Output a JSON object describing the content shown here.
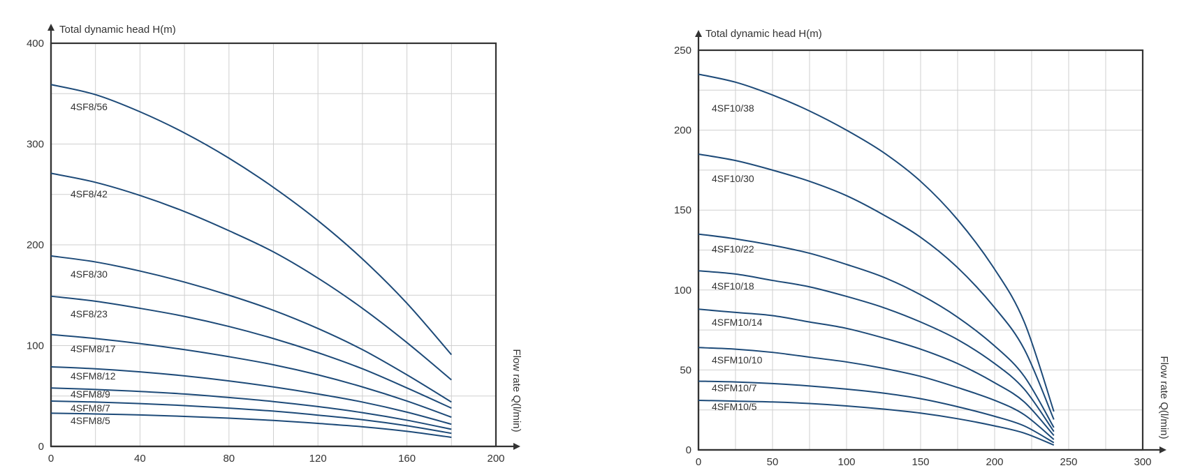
{
  "chart_data": [
    {
      "type": "line",
      "ylabel": "Total dynamic head H(m)",
      "xlabel": "Flow rate Q(l/min)",
      "xlim": [
        0,
        200
      ],
      "ylim": [
        0,
        400
      ],
      "xticks": [
        "0",
        "40",
        "80",
        "120",
        "160",
        "200"
      ],
      "yticks": [
        "0",
        "100",
        "200",
        "300",
        "400"
      ],
      "xtick_values": [
        0,
        40,
        80,
        120,
        160,
        200
      ],
      "ytick_values": [
        0,
        100,
        200,
        300,
        400
      ],
      "grid": true,
      "x": [
        0,
        20,
        40,
        60,
        80,
        100,
        120,
        140,
        160,
        180
      ],
      "series": [
        {
          "name": "4SF8/56",
          "values": [
            359,
            349,
            332,
            311,
            286,
            257,
            224,
            186,
            142,
            91
          ]
        },
        {
          "name": "4SF8/42",
          "values": [
            271,
            262,
            249,
            233,
            214,
            193,
            167,
            137,
            103,
            66
          ]
        },
        {
          "name": "4SF8/30",
          "values": [
            189,
            183,
            174,
            163,
            150,
            135,
            117,
            96,
            71,
            44
          ]
        },
        {
          "name": "4SF8/23",
          "values": [
            149,
            144,
            137,
            129,
            119,
            107,
            93,
            77,
            58,
            38
          ]
        },
        {
          "name": "4SFM8/17",
          "values": [
            111,
            107,
            102,
            96,
            89,
            81,
            71,
            59,
            45,
            29
          ]
        },
        {
          "name": "4SFM8/12",
          "values": [
            79,
            77,
            74,
            70,
            65,
            59,
            52,
            44,
            34,
            22
          ]
        },
        {
          "name": "4SFM8/9",
          "values": [
            58,
            56.5,
            54.5,
            52,
            48.5,
            44.5,
            39.5,
            33.5,
            26,
            17
          ]
        },
        {
          "name": "4SFM8/7",
          "values": [
            45,
            44,
            42.5,
            40.5,
            38,
            35,
            31,
            26.5,
            20.5,
            13
          ]
        },
        {
          "name": "4SFM8/5",
          "values": [
            33,
            32.2,
            31.2,
            29.8,
            28,
            25.8,
            22.8,
            19.5,
            15,
            9
          ]
        }
      ]
    },
    {
      "type": "line",
      "ylabel": "Total dynamic head H(m)",
      "xlabel": "Flow rate Q(l/min)",
      "xlim": [
        0,
        300
      ],
      "ylim": [
        0,
        250
      ],
      "xticks": [
        "0",
        "50",
        "100",
        "150",
        "200",
        "250",
        "300"
      ],
      "yticks": [
        "0",
        "50",
        "100",
        "150",
        "200",
        "250"
      ],
      "xtick_values": [
        0,
        50,
        100,
        150,
        200,
        250,
        300
      ],
      "ytick_values": [
        0,
        50,
        100,
        150,
        200,
        250
      ],
      "grid": true,
      "x": [
        0,
        25,
        50,
        75,
        100,
        125,
        150,
        175,
        200,
        220,
        240
      ],
      "series": [
        {
          "name": "4SF10/38",
          "values": [
            235,
            230,
            222,
            212,
            200,
            186,
            168,
            144,
            113,
            80,
            24
          ]
        },
        {
          "name": "4SF10/30",
          "values": [
            185,
            181,
            175,
            168,
            159,
            147,
            133,
            114,
            89,
            63,
            19
          ]
        },
        {
          "name": "4SF10/22",
          "values": [
            135,
            132,
            128,
            123,
            116,
            108,
            97,
            83,
            65,
            46,
            14
          ]
        },
        {
          "name": "4SF10/18",
          "values": [
            112,
            110,
            106,
            102,
            96,
            89,
            80,
            69,
            54,
            38,
            11.5
          ]
        },
        {
          "name": "4SFM10/14",
          "values": [
            88,
            86,
            84,
            80,
            76,
            70,
            63,
            54,
            42,
            30,
            9
          ]
        },
        {
          "name": "4SFM10/10",
          "values": [
            64,
            63,
            61,
            58,
            55,
            51,
            46,
            39,
            31,
            22,
            6.5
          ]
        },
        {
          "name": "4SFM10/7",
          "values": [
            43,
            42.5,
            41.5,
            40,
            38,
            35.5,
            32,
            27,
            21,
            15,
            4.5
          ]
        },
        {
          "name": "4SFM10/5",
          "values": [
            31,
            30.5,
            30,
            29,
            27.5,
            25.5,
            23,
            19.5,
            15,
            10.5,
            3
          ]
        }
      ]
    }
  ]
}
